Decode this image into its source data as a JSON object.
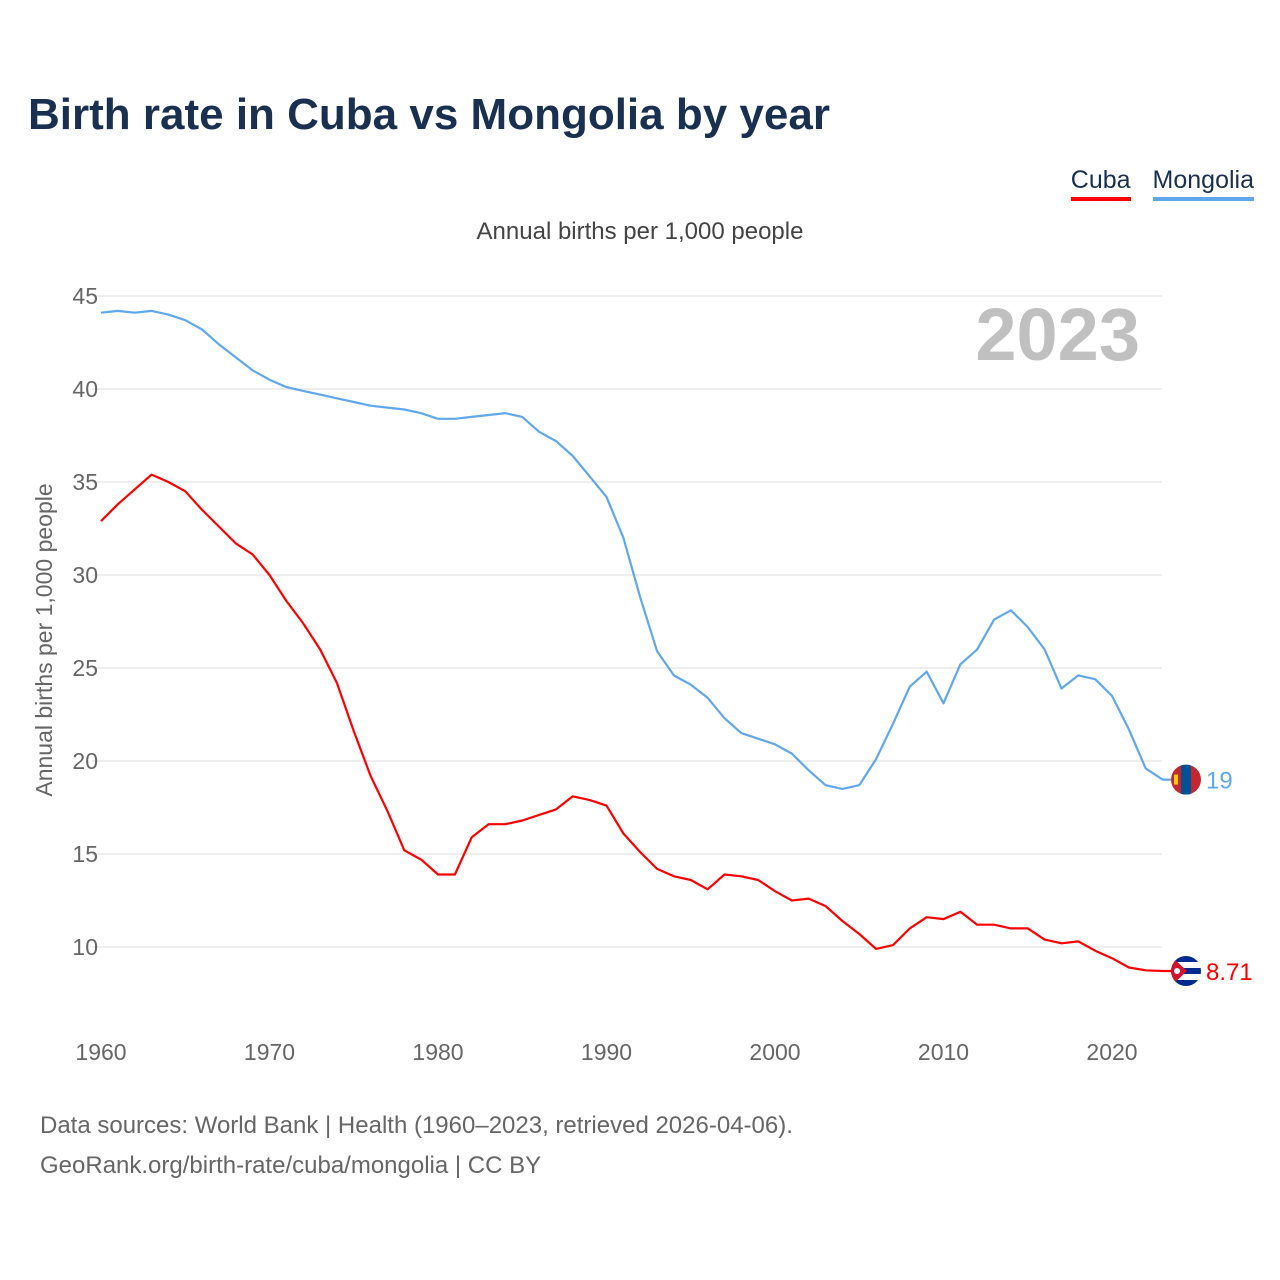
{
  "title": "Birth rate in Cuba vs Mongolia by year",
  "legend": [
    {
      "label": "Cuba",
      "color": "#ff0000"
    },
    {
      "label": "Mongolia",
      "color": "#5fa8ee"
    }
  ],
  "subtitle": "Annual births per 1,000 people",
  "year_label": "2023",
  "source_line1": "Data sources: World Bank | Health (1960–2023, retrieved 2026-04-06).",
  "source_line2": "GeoRank.org/birth-rate/cuba/mongolia | CC BY",
  "chart_data": {
    "type": "line",
    "title": "Birth rate in Cuba vs Mongolia by year",
    "xlabel": "",
    "ylabel": "Annual births per 1,000 people",
    "xlim": [
      1960,
      2023
    ],
    "ylim": [
      6.5,
      47
    ],
    "xticks": [
      1960,
      1970,
      1980,
      1990,
      2000,
      2010,
      2020
    ],
    "yticks": [
      10,
      15,
      20,
      25,
      30,
      35,
      40,
      45
    ],
    "grid": true,
    "legend_position": "top-right",
    "x_start": 1960,
    "series": [
      {
        "name": "Cuba",
        "color": "#ff0000",
        "end_label": "8.71",
        "values": [
          32.9,
          33.8,
          34.6,
          35.4,
          35.0,
          34.5,
          33.5,
          32.6,
          31.7,
          31.1,
          30.0,
          28.6,
          27.4,
          26.0,
          24.2,
          21.6,
          19.2,
          17.3,
          15.2,
          14.7,
          13.9,
          13.9,
          15.9,
          16.6,
          16.6,
          16.8,
          17.1,
          17.4,
          18.1,
          17.9,
          17.6,
          16.1,
          15.1,
          14.2,
          13.8,
          13.6,
          13.1,
          13.9,
          13.8,
          13.6,
          13.0,
          12.5,
          12.6,
          12.2,
          11.4,
          10.7,
          9.9,
          10.1,
          11.0,
          11.6,
          11.5,
          11.9,
          11.2,
          11.2,
          11.0,
          11.0,
          10.4,
          10.2,
          10.3,
          9.8,
          9.4,
          8.9,
          8.75,
          8.71
        ]
      },
      {
        "name": "Mongolia",
        "color": "#5fa8ee",
        "end_label": "19",
        "values": [
          44.1,
          44.2,
          44.1,
          44.2,
          44.0,
          43.7,
          43.2,
          42.4,
          41.7,
          41.0,
          40.5,
          40.1,
          39.9,
          39.7,
          39.5,
          39.3,
          39.1,
          39.0,
          38.9,
          38.7,
          38.4,
          38.4,
          38.5,
          38.6,
          38.7,
          38.5,
          37.7,
          37.2,
          36.4,
          35.3,
          34.2,
          32.0,
          28.8,
          25.9,
          24.6,
          24.1,
          23.4,
          22.3,
          21.5,
          21.2,
          20.9,
          20.4,
          19.5,
          18.7,
          18.5,
          18.7,
          20.1,
          22.0,
          24.0,
          24.8,
          23.1,
          25.2,
          26.0,
          27.6,
          28.1,
          27.2,
          26.0,
          23.9,
          24.6,
          24.4,
          23.5,
          21.7,
          19.6,
          19.0
        ]
      }
    ]
  }
}
